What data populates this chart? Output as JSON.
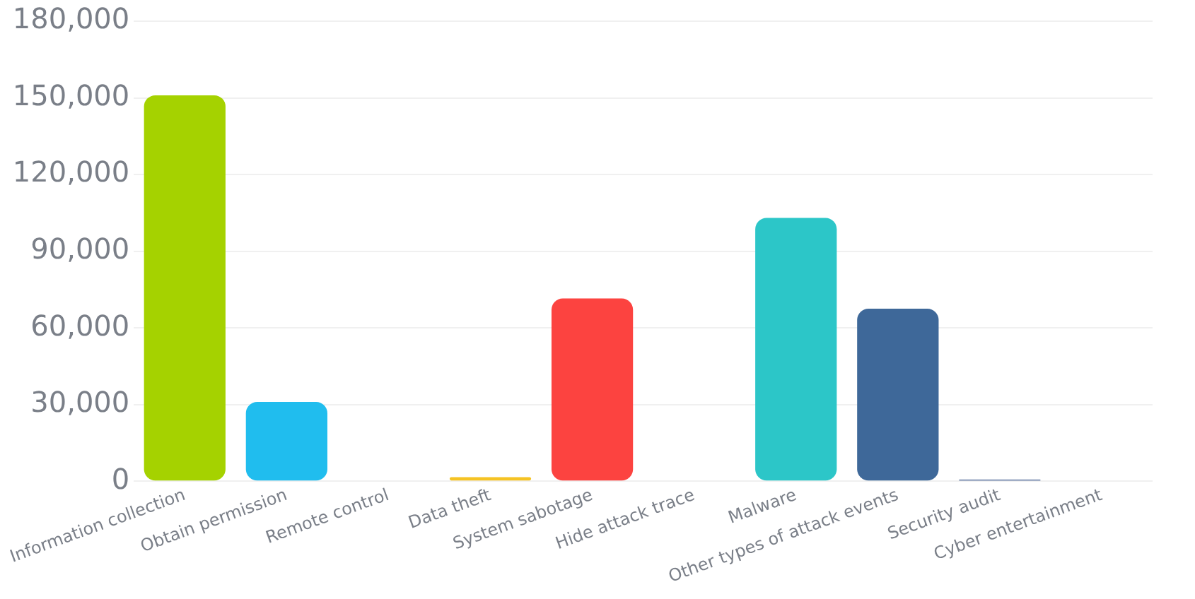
{
  "chart_data": {
    "type": "bar",
    "categories": [
      "Information collection",
      "Obtain permission",
      "Remote control",
      "Data theft",
      "System sabotage",
      "Hide attack trace",
      "Malware",
      "Other types of attack events",
      "Security audit",
      "Cyber entertainment"
    ],
    "values": [
      151000,
      31000,
      0,
      1600,
      71500,
      0,
      103000,
      67500,
      600,
      0
    ],
    "colors": [
      "#a5d200",
      "#20bdee",
      "#a5d200",
      "#f5c324",
      "#fc4340",
      "#5560b6",
      "#2cc6c8",
      "#3e6899",
      "#3e5a8e",
      "#888888"
    ],
    "ylim": [
      0,
      180000
    ],
    "yticks": [
      {
        "value": 0,
        "label": "0"
      },
      {
        "value": 30000,
        "label": "30,000"
      },
      {
        "value": 60000,
        "label": "60,000"
      },
      {
        "value": 90000,
        "label": "90,000"
      },
      {
        "value": 120000,
        "label": "120,000"
      },
      {
        "value": 150000,
        "label": "150,000"
      },
      {
        "value": 180000,
        "label": "180,000"
      }
    ],
    "grid": "y",
    "legend": false
  }
}
